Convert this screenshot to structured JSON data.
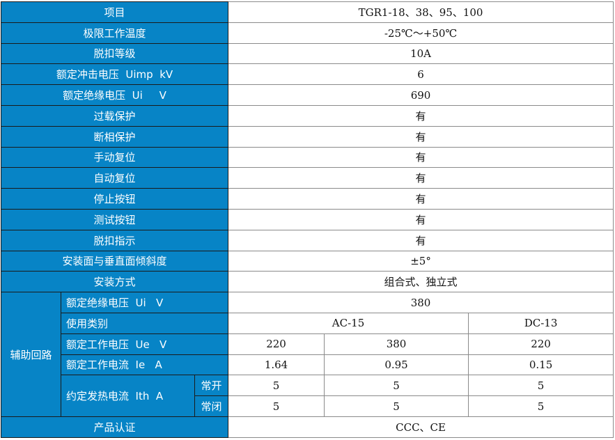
{
  "rows": [
    {
      "label": "项目",
      "value": "TGR1-18、38、95、100"
    },
    {
      "label": "极限工作温度",
      "value": "-25℃～+50℃"
    },
    {
      "label": "脱扣等级",
      "value": "10A"
    },
    {
      "label": "额定冲击电压  Uimp  kV",
      "value": "6"
    },
    {
      "label": "额定绝缘电压  Ui     V",
      "value": "690"
    },
    {
      "label": "过载保护",
      "value": "有"
    },
    {
      "label": "断相保护",
      "value": "有"
    },
    {
      "label": "手动复位",
      "value": "有"
    },
    {
      "label": "自动复位",
      "value": "有"
    },
    {
      "label": "停止按钮",
      "value": "有"
    },
    {
      "label": "测试按钮",
      "value": "有"
    },
    {
      "label": "脱扣指示",
      "value": "有"
    },
    {
      "label": "安装面与垂直面倾斜度",
      "value": "±5°"
    },
    {
      "label": "安装方式",
      "value": "组合式、独立式"
    }
  ],
  "aux": {
    "group_label": "辅助回路",
    "ui": {
      "label": "额定绝缘电压  Ui   V",
      "value": "380"
    },
    "category": {
      "label": "使用类别",
      "ac": "AC-15",
      "dc": "DC-13"
    },
    "ue": {
      "label": "额定工作电压  Ue   V",
      "values": [
        "220",
        "380",
        "220"
      ]
    },
    "ie": {
      "label": "额定工作电流  Ie   A",
      "values": [
        "1.64",
        "0.95",
        "0.15"
      ]
    },
    "ith": {
      "label": "约定发热电流  Ith  A",
      "no": {
        "label": "常开",
        "values": [
          "5",
          "5",
          "5"
        ]
      },
      "nc": {
        "label": "常闭",
        "values": [
          "5",
          "5",
          "5"
        ]
      }
    }
  },
  "cert": {
    "label": "产品认证",
    "value": "CCC、CE"
  },
  "colors": {
    "header_bg": "#0784c6",
    "header_text": "#ffffff"
  }
}
